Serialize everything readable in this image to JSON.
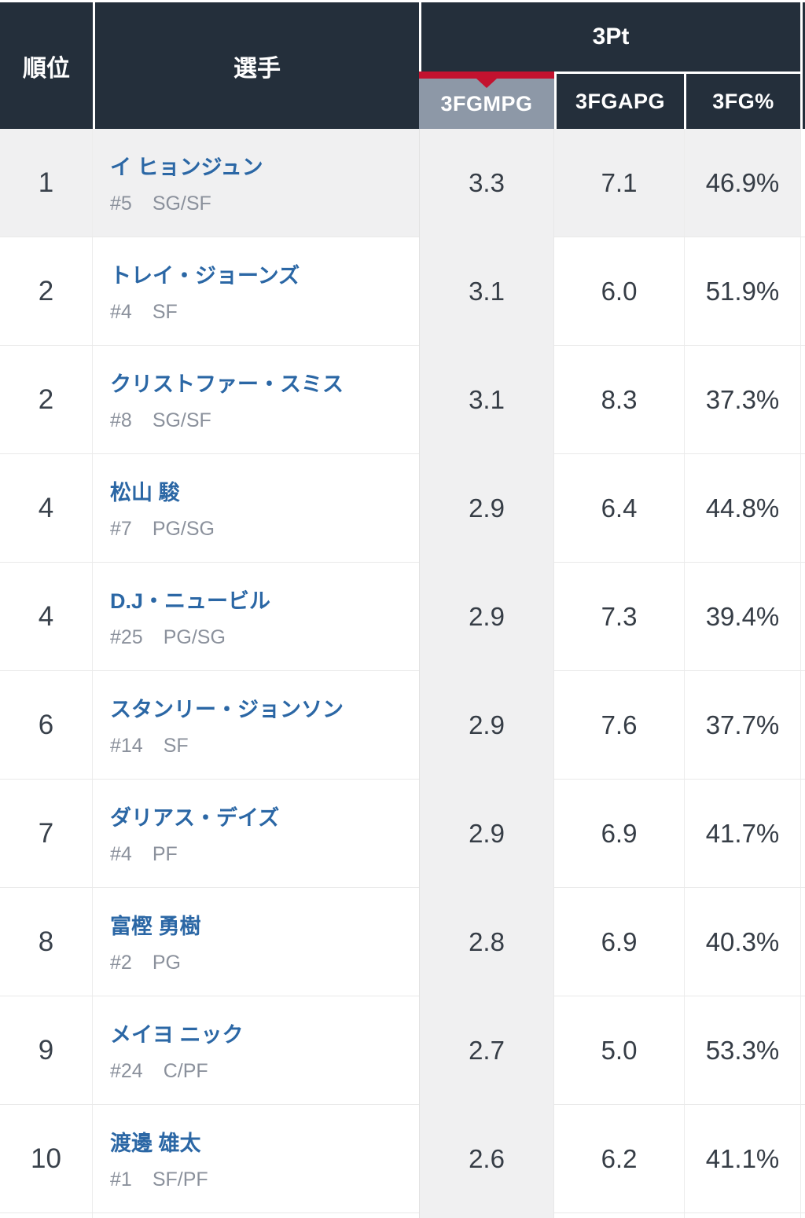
{
  "colors": {
    "header_navy": "#242f3b",
    "accent_red": "#c3122f",
    "sorted_header_bg": "#8d98a7",
    "sorted_column_bg": "#f0f0f1",
    "highlight_row_bg": "#f0f0f1",
    "player_link_blue": "#2b67a5",
    "sub_text_gray": "#8b919c",
    "stat_text": "#363d46"
  },
  "header": {
    "rank_label": "順位",
    "player_label": "選手",
    "group_label": "3Pt",
    "col_3fgmpg": "3FGMPG",
    "col_3fgapg": "3FGAPG",
    "col_3fgpct": "3FG%",
    "sorted_column": "3FGMPG"
  },
  "rows": [
    {
      "rank": "1",
      "name": "イ ヒョンジュン",
      "number": "#5",
      "position": "SG/SF",
      "fgm": "3.3",
      "fga": "7.1",
      "pct": "46.9%"
    },
    {
      "rank": "2",
      "name": "トレイ・ジョーンズ",
      "number": "#4",
      "position": "SF",
      "fgm": "3.1",
      "fga": "6.0",
      "pct": "51.9%"
    },
    {
      "rank": "2",
      "name": "クリストファー・スミス",
      "number": "#8",
      "position": "SG/SF",
      "fgm": "3.1",
      "fga": "8.3",
      "pct": "37.3%"
    },
    {
      "rank": "4",
      "name": "松山 駿",
      "number": "#7",
      "position": "PG/SG",
      "fgm": "2.9",
      "fga": "6.4",
      "pct": "44.8%"
    },
    {
      "rank": "4",
      "name": "D.J・ニュービル",
      "number": "#25",
      "position": "PG/SG",
      "fgm": "2.9",
      "fga": "7.3",
      "pct": "39.4%"
    },
    {
      "rank": "6",
      "name": "スタンリー・ジョンソン",
      "number": "#14",
      "position": "SF",
      "fgm": "2.9",
      "fga": "7.6",
      "pct": "37.7%"
    },
    {
      "rank": "7",
      "name": "ダリアス・デイズ",
      "number": "#4",
      "position": "PF",
      "fgm": "2.9",
      "fga": "6.9",
      "pct": "41.7%"
    },
    {
      "rank": "8",
      "name": "富樫 勇樹",
      "number": "#2",
      "position": "PG",
      "fgm": "2.8",
      "fga": "6.9",
      "pct": "40.3%"
    },
    {
      "rank": "9",
      "name": "メイヨ ニック",
      "number": "#24",
      "position": "C/PF",
      "fgm": "2.7",
      "fga": "5.0",
      "pct": "53.3%"
    },
    {
      "rank": "10",
      "name": "渡邊 雄太",
      "number": "#1",
      "position": "SF/PF",
      "fgm": "2.6",
      "fga": "6.2",
      "pct": "41.1%"
    }
  ]
}
